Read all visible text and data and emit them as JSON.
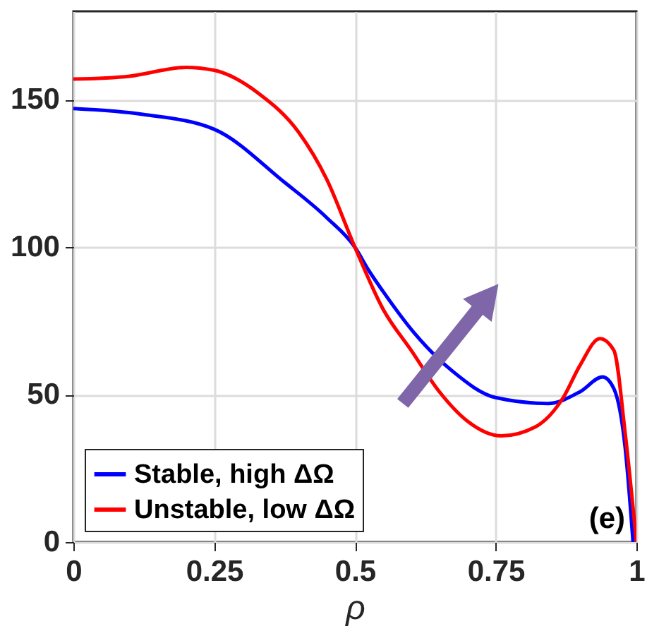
{
  "chart_data": {
    "type": "line",
    "xlabel": "ρ",
    "xlim": [
      0,
      1
    ],
    "xticks": [
      0,
      0.25,
      0.5,
      0.75,
      1
    ],
    "ylim": [
      0,
      180
    ],
    "yticks": [
      0,
      50,
      100,
      150
    ],
    "grid": true,
    "legend": "bottom left",
    "line_style": "solid",
    "marker": "none",
    "annotations": [
      "(e)"
    ],
    "series": [
      {
        "name": "Stable, high ΔΩ",
        "color": "#0000ff",
        "x": [
          0,
          0.125,
          0.25,
          0.375,
          0.45,
          0.5,
          0.525,
          0.55,
          0.605,
          0.673,
          0.75,
          0.843,
          0.9,
          0.94,
          0.96,
          0.98,
          0.994
        ],
        "values": [
          147,
          145,
          140,
          122,
          110,
          100,
          92,
          85,
          71,
          58,
          49,
          47,
          51,
          56,
          52,
          32,
          0
        ]
      },
      {
        "name": "Unstable, low ΔΩ",
        "color": "#ff0000",
        "x": [
          0,
          0.1,
          0.2,
          0.25,
          0.33,
          0.4,
          0.45,
          0.5,
          0.55,
          0.6,
          0.65,
          0.7,
          0.76,
          0.82,
          0.87,
          0.9,
          0.935,
          0.96,
          0.98,
          1
        ],
        "values": [
          157,
          158,
          161,
          160,
          152,
          139,
          123,
          100,
          79,
          65,
          51,
          41,
          36,
          39,
          49,
          60,
          69,
          65,
          37,
          0
        ]
      }
    ]
  }
}
